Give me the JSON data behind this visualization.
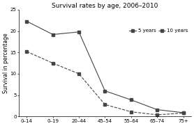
{
  "title": "Survival rates by age, 2006–2010",
  "ylabel": "Survival in percentage",
  "categories": [
    "0–14",
    "0–19",
    "20–44",
    "45–54",
    "55–64",
    "65–74",
    "75+"
  ],
  "series_5yr": [
    22.3,
    19.2,
    19.8,
    6.0,
    3.9,
    1.6,
    0.9
  ],
  "series_10yr": [
    15.2,
    12.5,
    10.0,
    2.8,
    1.1,
    0.4,
    0.8
  ],
  "ylim": [
    0,
    25
  ],
  "yticks": [
    0,
    5,
    10,
    15,
    20,
    25
  ],
  "legend_labels": [
    "5 years",
    "10 years"
  ],
  "line_color": "#444444",
  "marker_5yr": "s",
  "marker_10yr": "s",
  "linestyle_5yr": "-",
  "linestyle_10yr": "--",
  "title_fontsize": 6.5,
  "label_fontsize": 5.5,
  "tick_fontsize": 5.0,
  "legend_fontsize": 5.0,
  "background_color": "#ffffff",
  "marker_size": 2.5,
  "linewidth": 0.8
}
